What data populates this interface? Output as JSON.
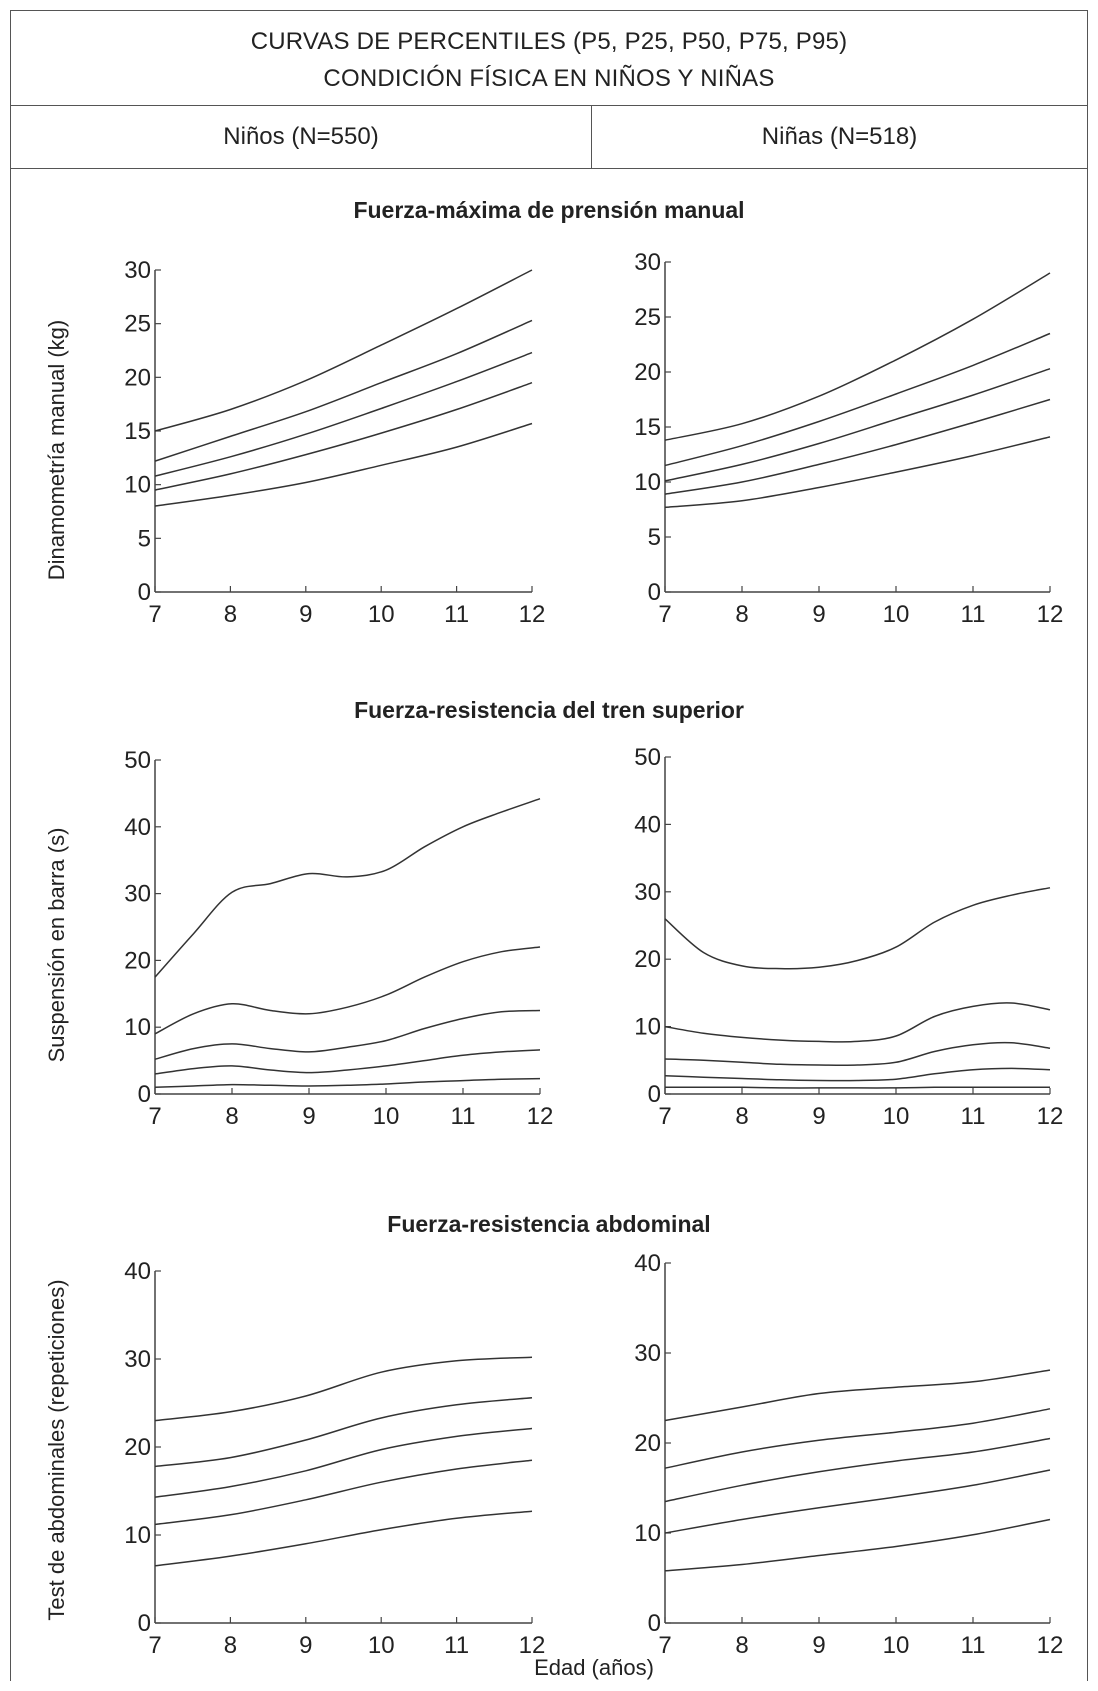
{
  "title": {
    "line1": "CURVAS DE PERCENTILES (P5, P25, P50, P75, P95)",
    "line2": "CONDICIÓN FÍSICA EN NIÑOS Y NIÑAS"
  },
  "columns": {
    "boys": "Niños (N=550)",
    "girls": "Niñas (N=518)"
  },
  "xlabel": "Edad (años)",
  "sections": [
    {
      "title": "Fuerza-máxima de prensión manual",
      "ylabel": "Dinamometría manual (kg)"
    },
    {
      "title": "Fuerza-resistencia del tren superior",
      "ylabel": "Suspensión en barra (s)"
    },
    {
      "title": "Fuerza-resistencia abdominal",
      "ylabel": "Test de abdominales (repeticiones)"
    }
  ],
  "chart_data": [
    {
      "type": "line",
      "group": "Niños",
      "section": 0,
      "x": [
        7,
        8,
        9,
        10,
        11,
        12
      ],
      "xlim": [
        7,
        12
      ],
      "ylim": [
        0,
        30
      ],
      "yticks": [
        0,
        5,
        10,
        15,
        20,
        25,
        30
      ],
      "series": [
        {
          "values": [
            8,
            9,
            10.2,
            11.8,
            13.5,
            15.7
          ]
        },
        {
          "values": [
            9.5,
            11,
            12.8,
            14.8,
            17,
            19.5
          ]
        },
        {
          "values": [
            10.8,
            12.6,
            14.7,
            17.1,
            19.6,
            22.3
          ]
        },
        {
          "values": [
            12.2,
            14.5,
            16.8,
            19.5,
            22.2,
            25.3
          ]
        },
        {
          "values": [
            15,
            17,
            19.7,
            23,
            26.4,
            30
          ]
        }
      ]
    },
    {
      "type": "line",
      "group": "Niñas",
      "section": 0,
      "x": [
        7,
        8,
        9,
        10,
        11,
        12
      ],
      "xlim": [
        7,
        12
      ],
      "ylim": [
        0,
        30
      ],
      "yticks": [
        0,
        5,
        10,
        15,
        20,
        25,
        30
      ],
      "series": [
        {
          "values": [
            7.7,
            8.3,
            9.5,
            10.9,
            12.4,
            14.1
          ]
        },
        {
          "values": [
            8.9,
            10,
            11.6,
            13.4,
            15.4,
            17.5
          ]
        },
        {
          "values": [
            10.1,
            11.6,
            13.5,
            15.7,
            17.9,
            20.3
          ]
        },
        {
          "values": [
            11.5,
            13.3,
            15.5,
            18,
            20.6,
            23.5
          ]
        },
        {
          "values": [
            13.8,
            15.3,
            17.8,
            21.1,
            24.8,
            29
          ]
        }
      ]
    },
    {
      "type": "line",
      "group": "Niños",
      "section": 1,
      "x": [
        7,
        7.5,
        8,
        8.5,
        9,
        9.5,
        10,
        10.5,
        11,
        11.5,
        12
      ],
      "xlim": [
        7,
        12
      ],
      "ylim": [
        0,
        50
      ],
      "yticks": [
        0,
        10,
        20,
        30,
        40,
        50
      ],
      "series": [
        {
          "values": [
            1,
            1.2,
            1.4,
            1.3,
            1.2,
            1.3,
            1.5,
            1.8,
            2,
            2.2,
            2.3
          ]
        },
        {
          "values": [
            3,
            3.8,
            4.2,
            3.6,
            3.2,
            3.6,
            4.2,
            5,
            5.8,
            6.3,
            6.6
          ]
        },
        {
          "values": [
            5.2,
            6.8,
            7.5,
            6.8,
            6.3,
            7,
            8,
            9.8,
            11.3,
            12.3,
            12.5
          ]
        },
        {
          "values": [
            9,
            12,
            13.5,
            12.5,
            12,
            13,
            14.8,
            17.5,
            19.8,
            21.3,
            22
          ]
        },
        {
          "values": [
            17.5,
            24,
            30.2,
            31.5,
            33,
            32.5,
            33.5,
            37,
            40,
            42.2,
            44.2
          ]
        }
      ]
    },
    {
      "type": "line",
      "group": "Niñas",
      "section": 1,
      "x": [
        7,
        7.5,
        8,
        8.5,
        9,
        9.5,
        10,
        10.5,
        11,
        11.5,
        12
      ],
      "xlim": [
        7,
        12
      ],
      "ylim": [
        0,
        50
      ],
      "yticks": [
        0,
        10,
        20,
        30,
        40,
        50
      ],
      "series": [
        {
          "values": [
            1,
            1,
            1,
            0.9,
            0.9,
            0.9,
            0.9,
            1,
            1,
            1,
            1
          ]
        },
        {
          "values": [
            2.7,
            2.5,
            2.3,
            2.1,
            2,
            2,
            2.2,
            3,
            3.6,
            3.8,
            3.6
          ]
        },
        {
          "values": [
            5.2,
            5,
            4.7,
            4.4,
            4.3,
            4.3,
            4.7,
            6.3,
            7.3,
            7.6,
            6.8
          ]
        },
        {
          "values": [
            10,
            9,
            8.4,
            8,
            7.8,
            7.8,
            8.6,
            11.5,
            13,
            13.5,
            12.5
          ]
        },
        {
          "values": [
            26,
            21,
            19,
            18.6,
            18.8,
            19.8,
            21.8,
            25.5,
            28,
            29.5,
            30.6
          ]
        }
      ]
    },
    {
      "type": "line",
      "group": "Niños",
      "section": 2,
      "x": [
        7,
        8,
        9,
        10,
        11,
        12
      ],
      "xlim": [
        7,
        12
      ],
      "ylim": [
        0,
        40
      ],
      "yticks": [
        0,
        10,
        20,
        30,
        40
      ],
      "series": [
        {
          "values": [
            6.5,
            7.6,
            9,
            10.6,
            11.9,
            12.7
          ]
        },
        {
          "values": [
            11.2,
            12.3,
            14,
            16,
            17.5,
            18.5
          ]
        },
        {
          "values": [
            14.3,
            15.5,
            17.3,
            19.7,
            21.2,
            22.1
          ]
        },
        {
          "values": [
            17.8,
            18.8,
            20.8,
            23.3,
            24.8,
            25.6
          ]
        },
        {
          "values": [
            23,
            24,
            25.8,
            28.5,
            29.8,
            30.2
          ]
        }
      ]
    },
    {
      "type": "line",
      "group": "Niñas",
      "section": 2,
      "x": [
        7,
        8,
        9,
        10,
        11,
        12
      ],
      "xlim": [
        7,
        12
      ],
      "ylim": [
        0,
        40
      ],
      "yticks": [
        0,
        10,
        20,
        30,
        40
      ],
      "series": [
        {
          "values": [
            5.8,
            6.5,
            7.5,
            8.5,
            9.8,
            11.5
          ]
        },
        {
          "values": [
            10,
            11.5,
            12.8,
            14,
            15.3,
            17
          ]
        },
        {
          "values": [
            13.5,
            15.3,
            16.8,
            18,
            19,
            20.5
          ]
        },
        {
          "values": [
            17.2,
            19,
            20.3,
            21.2,
            22.2,
            23.8
          ]
        },
        {
          "values": [
            22.5,
            24,
            25.5,
            26.2,
            26.8,
            28.1
          ]
        }
      ]
    }
  ]
}
